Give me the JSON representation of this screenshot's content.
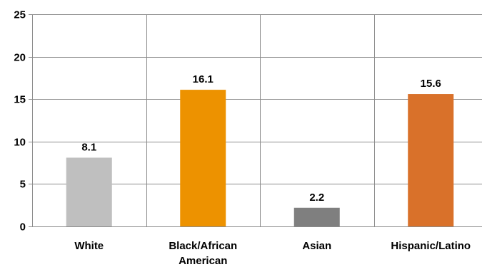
{
  "chart_data": {
    "type": "bar",
    "categories": [
      [
        "White"
      ],
      [
        "Black/African",
        "American"
      ],
      [
        "Asian"
      ],
      [
        "Hispanic/Latino"
      ]
    ],
    "values": [
      8.1,
      16.1,
      2.2,
      15.6
    ],
    "value_labels": [
      "8.1",
      "16.1",
      "2.2",
      "15.6"
    ],
    "colors": [
      "#bfbfbf",
      "#ed9200",
      "#7f7f7f",
      "#d9712a"
    ],
    "ylim": [
      0,
      25
    ],
    "yticks": [
      0,
      5,
      10,
      15,
      20,
      25
    ],
    "ytick_labels": [
      "0",
      "5",
      "10",
      "15",
      "20",
      "25"
    ],
    "grid": "both",
    "title": "",
    "xlabel": "",
    "ylabel": ""
  }
}
